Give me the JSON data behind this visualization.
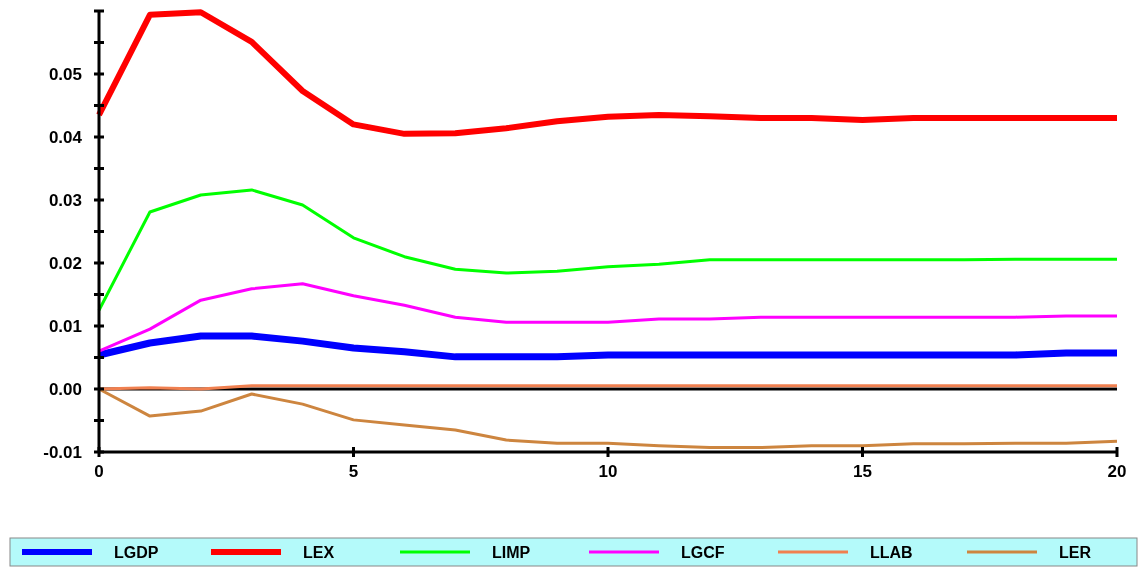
{
  "chart_data": {
    "type": "line",
    "x": [
      0,
      1,
      2,
      3,
      4,
      5,
      6,
      7,
      8,
      9,
      10,
      11,
      12,
      13,
      14,
      15,
      16,
      17,
      18,
      19,
      20
    ],
    "xlim": [
      0,
      20
    ],
    "xticks": [
      0,
      5,
      10,
      15,
      20
    ],
    "ylim": [
      -0.01,
      0.06
    ],
    "yticks": [
      {
        "value": -0.01,
        "label": "-0.01"
      },
      {
        "value": -0.005,
        "label": null
      },
      {
        "value": 0,
        "label": "0.00"
      },
      {
        "value": 0.005,
        "label": null
      },
      {
        "value": 0.01,
        "label": "0.01"
      },
      {
        "value": 0.015,
        "label": null
      },
      {
        "value": 0.02,
        "label": "0.02"
      },
      {
        "value": 0.025,
        "label": null
      },
      {
        "value": 0.03,
        "label": "0.03"
      },
      {
        "value": 0.035,
        "label": null
      },
      {
        "value": 0.04,
        "label": "0.04"
      },
      {
        "value": 0.045,
        "label": null
      },
      {
        "value": 0.05,
        "label": "0.05"
      },
      {
        "value": 0.055,
        "label": null
      },
      {
        "value": 0.06,
        "label": null
      }
    ],
    "ref_lines": [
      {
        "axis": "y",
        "value": 0,
        "color": "#000000"
      }
    ],
    "legend": "bottom",
    "line_style": "solid",
    "marker": "none",
    "grid": false,
    "series": [
      {
        "name": "LGDP",
        "color": "#0000ff",
        "values": [
          0.0054,
          0.0073,
          0.0084,
          0.0084,
          0.0076,
          0.0065,
          0.0059,
          0.0051,
          0.0051,
          0.0051,
          0.0054,
          0.0054,
          0.0054,
          0.0054,
          0.0054,
          0.0054,
          0.0054,
          0.0054,
          0.0054,
          0.0057,
          0.0057
        ]
      },
      {
        "name": "LEX",
        "color": "#ff0000",
        "values": [
          0.0435,
          0.0594,
          0.0598,
          0.0551,
          0.0473,
          0.042,
          0.0405,
          0.0406,
          0.0414,
          0.0425,
          0.0432,
          0.0435,
          0.0433,
          0.043,
          0.043,
          0.0427,
          0.043,
          0.043,
          0.043,
          0.043,
          0.043
        ]
      },
      {
        "name": "LIMP",
        "color": "#00ff00",
        "values": [
          0.0125,
          0.0281,
          0.0308,
          0.0316,
          0.0292,
          0.024,
          0.021,
          0.019,
          0.0184,
          0.0187,
          0.0194,
          0.0198,
          0.0205,
          0.0205,
          0.0205,
          0.0205,
          0.0205,
          0.0205,
          0.0206,
          0.0206,
          0.0206
        ]
      },
      {
        "name": "LGCF",
        "color": "#ff00ff",
        "values": [
          0.006,
          0.0095,
          0.0141,
          0.0159,
          0.0167,
          0.0148,
          0.0133,
          0.0114,
          0.0106,
          0.0106,
          0.0106,
          0.0111,
          0.0111,
          0.0114,
          0.0114,
          0.0114,
          0.0114,
          0.0114,
          0.0114,
          0.0116,
          0.0116
        ]
      },
      {
        "name": "LLAB",
        "color": "#f08050",
        "values": [
          0,
          0.0002,
          0,
          0.0005,
          0.0005,
          0.0005,
          0.0005,
          0.0005,
          0.0005,
          0.0005,
          0.0005,
          0.0005,
          0.0005,
          0.0005,
          0.0005,
          0.0005,
          0.0005,
          0.0005,
          0.0005,
          0.0005,
          0.0005
        ]
      },
      {
        "name": "LER",
        "color": "#cd853f",
        "values": [
          0,
          -0.0043,
          -0.0035,
          -0.0008,
          -0.0024,
          -0.0049,
          -0.0057,
          -0.0065,
          -0.0081,
          -0.0086,
          -0.0086,
          -0.009,
          -0.0093,
          -0.0093,
          -0.009,
          -0.009,
          -0.0087,
          -0.0087,
          -0.0086,
          -0.0086,
          -0.0083
        ]
      }
    ]
  }
}
